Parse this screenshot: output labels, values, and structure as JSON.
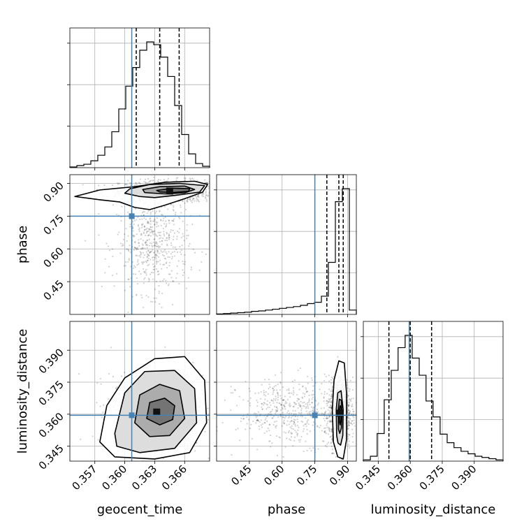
{
  "chart_data": {
    "type": "corner",
    "parameters": [
      "geocent_time",
      "phase",
      "luminosity_distance"
    ],
    "truths": {
      "geocent_time": 0.3607,
      "phase": 0.75,
      "luminosity_distance": 0.3595
    },
    "truth_color": "#4682b4",
    "ranges": {
      "geocent_time": [
        0.3545,
        0.3685
      ],
      "phase": [
        0.3,
        0.94
      ],
      "luminosity_distance": [
        0.338,
        0.4035
      ]
    },
    "ticks": {
      "geocent_time": [
        0.357,
        0.36,
        0.363,
        0.366
      ],
      "phase": [
        0.45,
        0.6,
        0.75,
        0.9
      ],
      "luminosity_distance": [
        0.345,
        0.36,
        0.375,
        0.39
      ]
    },
    "tick_labels": {
      "geocent_time": [
        "0.357",
        "0.360",
        "0.363",
        "0.366"
      ],
      "phase": [
        "0.45",
        "0.60",
        "0.75",
        "0.90"
      ],
      "luminosity_distance": [
        "0.345",
        "0.360",
        "0.375",
        "0.390"
      ]
    },
    "axis_labels": {
      "geocent_time": "geocent_time",
      "phase": "phase",
      "luminosity_distance": "luminosity_distance"
    },
    "quantiles": {
      "geocent_time": [
        0.36115,
        0.3635,
        0.36545
      ],
      "phase": [
        0.805,
        0.86,
        0.88
      ],
      "luminosity_distance": [
        0.35,
        0.36,
        0.37
      ]
    },
    "histograms": {
      "geocent_time": {
        "edges": [
          0.3545,
          0.3552,
          0.3559,
          0.3566,
          0.3573,
          0.358,
          0.3587,
          0.3594,
          0.3601,
          0.3608,
          0.3615,
          0.3622,
          0.3629,
          0.3636,
          0.3643,
          0.365,
          0.3657,
          0.3664,
          0.3671,
          0.3678,
          0.3685
        ],
        "counts": [
          1,
          3,
          5,
          10,
          18,
          30,
          52,
          85,
          118,
          145,
          170,
          182,
          178,
          160,
          132,
          90,
          48,
          20,
          6,
          2
        ]
      },
      "phase": {
        "edges": [
          0.3,
          0.332,
          0.364,
          0.396,
          0.428,
          0.46,
          0.492,
          0.524,
          0.556,
          0.588,
          0.62,
          0.652,
          0.684,
          0.716,
          0.748,
          0.78,
          0.812,
          0.844,
          0.876,
          0.908,
          0.94
        ],
        "counts": [
          1,
          2,
          3,
          4,
          5,
          7,
          8,
          10,
          12,
          14,
          16,
          18,
          21,
          25,
          28,
          42,
          120,
          260,
          290,
          10
        ]
      },
      "luminosity_distance": {
        "edges": [
          0.338,
          0.3413,
          0.3445,
          0.3478,
          0.3511,
          0.3543,
          0.3576,
          0.3609,
          0.3642,
          0.3674,
          0.3707,
          0.374,
          0.3773,
          0.3805,
          0.3838,
          0.3871,
          0.3904,
          0.3936,
          0.3969,
          0.4002,
          0.4035
        ],
        "counts": [
          2,
          8,
          45,
          100,
          148,
          185,
          205,
          168,
          140,
          98,
          72,
          44,
          30,
          22,
          16,
          12,
          8,
          6,
          4,
          2
        ]
      }
    },
    "pairs": [
      {
        "x": "geocent_time",
        "y": "phase",
        "center": [
          0.3645,
          0.865
        ],
        "spread": [
          0.0025,
          0.025
        ],
        "tail": {
          "center": [
            0.3628,
            0.62
          ],
          "spread": [
            0.0018,
            0.11
          ]
        },
        "contours": [
          [
            [
              0.3605,
              0.875
            ],
            [
              0.3625,
              0.895
            ],
            [
              0.3655,
              0.9
            ],
            [
              0.368,
              0.89
            ],
            [
              0.3675,
              0.86
            ],
            [
              0.365,
              0.845
            ],
            [
              0.363,
              0.835
            ],
            [
              0.3615,
              0.84
            ],
            [
              0.36,
              0.855
            ]
          ],
          [
            [
              0.3618,
              0.872
            ],
            [
              0.3635,
              0.885
            ],
            [
              0.366,
              0.888
            ],
            [
              0.367,
              0.872
            ],
            [
              0.366,
              0.857
            ],
            [
              0.364,
              0.852
            ],
            [
              0.362,
              0.858
            ]
          ],
          [
            [
              0.3632,
              0.868
            ],
            [
              0.3648,
              0.878
            ],
            [
              0.3665,
              0.876
            ],
            [
              0.3664,
              0.864
            ],
            [
              0.3648,
              0.858
            ],
            [
              0.3635,
              0.861
            ]
          ],
          [
            [
              0.355,
              0.84
            ],
            [
              0.3575,
              0.87
            ],
            [
              0.361,
              0.885
            ],
            [
              0.364,
              0.905
            ],
            [
              0.367,
              0.91
            ],
            [
              0.3683,
              0.895
            ],
            [
              0.3678,
              0.86
            ],
            [
              0.366,
              0.83
            ],
            [
              0.364,
              0.8
            ],
            [
              0.3625,
              0.78
            ],
            [
              0.361,
              0.79
            ],
            [
              0.3595,
              0.815
            ],
            [
              0.3575,
              0.825
            ]
          ]
        ]
      },
      {
        "x": "geocent_time",
        "y": "luminosity_distance",
        "center": [
          0.3632,
          0.361
        ],
        "spread": [
          0.0023,
          0.0085
        ],
        "contours": [
          [
            [
              0.359,
              0.351
            ],
            [
              0.36,
              0.37
            ],
            [
              0.362,
              0.38
            ],
            [
              0.365,
              0.3805
            ],
            [
              0.367,
              0.372
            ],
            [
              0.3672,
              0.356
            ],
            [
              0.365,
              0.344
            ],
            [
              0.3615,
              0.342
            ],
            [
              0.3592,
              0.345
            ]
          ],
          [
            [
              0.361,
              0.356
            ],
            [
              0.3615,
              0.369
            ],
            [
              0.3635,
              0.374
            ],
            [
              0.3655,
              0.371
            ],
            [
              0.366,
              0.358
            ],
            [
              0.3645,
              0.35
            ],
            [
              0.3625,
              0.3495
            ]
          ],
          [
            [
              0.3622,
              0.358
            ],
            [
              0.3625,
              0.3655
            ],
            [
              0.364,
              0.3675
            ],
            [
              0.365,
              0.364
            ],
            [
              0.3648,
              0.3575
            ],
            [
              0.3635,
              0.355
            ]
          ],
          [
            [
              0.3575,
              0.347
            ],
            [
              0.3582,
              0.364
            ],
            [
              0.36,
              0.377
            ],
            [
              0.363,
              0.386
            ],
            [
              0.366,
              0.387
            ],
            [
              0.368,
              0.376
            ],
            [
              0.3682,
              0.356
            ],
            [
              0.3665,
              0.342
            ],
            [
              0.363,
              0.339
            ],
            [
              0.359,
              0.34
            ]
          ]
        ]
      },
      {
        "x": "phase",
        "y": "luminosity_distance",
        "center": [
          0.865,
          0.3605
        ],
        "spread": [
          0.025,
          0.008
        ],
        "tail": {
          "center": [
            0.66,
            0.361
          ],
          "spread": [
            0.13,
            0.0075
          ]
        },
        "contours": [
          [
            [
              0.85,
              0.35
            ],
            [
              0.848,
              0.362
            ],
            [
              0.855,
              0.37
            ],
            [
              0.87,
              0.371
            ],
            [
              0.88,
              0.362
            ],
            [
              0.878,
              0.35
            ],
            [
              0.868,
              0.3455
            ],
            [
              0.856,
              0.3465
            ]
          ],
          [
            [
              0.858,
              0.353
            ],
            [
              0.857,
              0.362
            ],
            [
              0.862,
              0.367
            ],
            [
              0.872,
              0.3665
            ],
            [
              0.874,
              0.36
            ],
            [
              0.872,
              0.3535
            ],
            [
              0.864,
              0.351
            ]
          ],
          [
            [
              0.863,
              0.356
            ],
            [
              0.862,
              0.362
            ],
            [
              0.866,
              0.364
            ],
            [
              0.87,
              0.363
            ],
            [
              0.87,
              0.3575
            ],
            [
              0.866,
              0.355
            ]
          ],
          [
            [
              0.835,
              0.347
            ],
            [
              0.83,
              0.362
            ],
            [
              0.838,
              0.376
            ],
            [
              0.86,
              0.385
            ],
            [
              0.885,
              0.384
            ],
            [
              0.895,
              0.37
            ],
            [
              0.895,
              0.348
            ],
            [
              0.88,
              0.339
            ],
            [
              0.855,
              0.34
            ]
          ]
        ]
      }
    ]
  }
}
